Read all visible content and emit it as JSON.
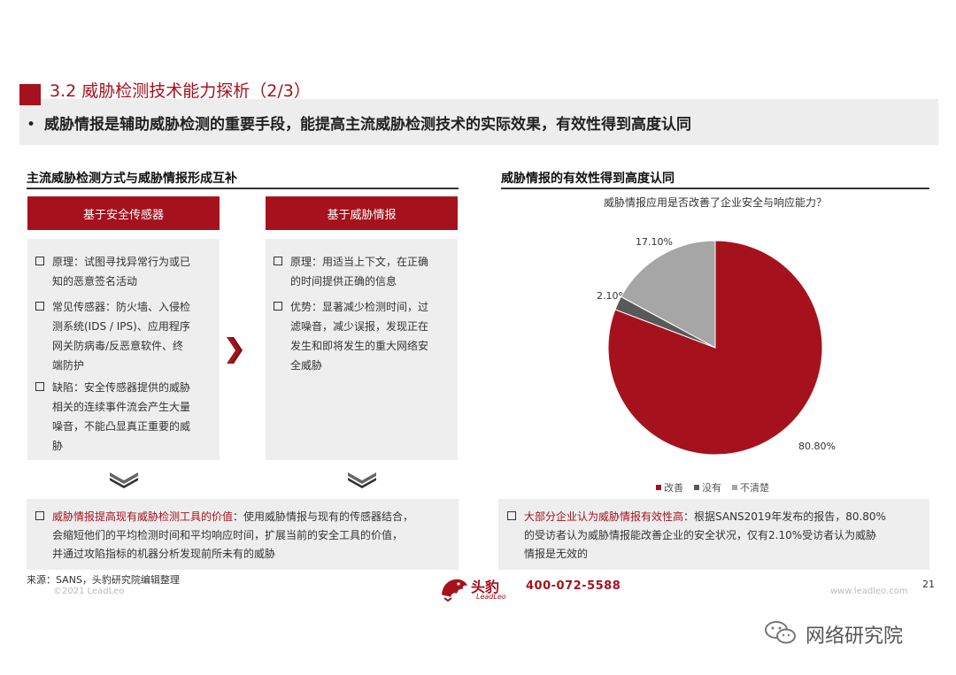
{
  "header": {
    "title": "3.2 威胁检测技术能力探析（2/3）",
    "summary_bullet": "•",
    "summary": "威胁情报是辅助威胁检测的重要手段，能提高主流威胁检测技术的实际效果，有效性得到高度认同"
  },
  "left_section": {
    "title": "主流威胁检测方式与威胁情报形成互补",
    "card1": {
      "header": "基于安全传感器",
      "items": [
        {
          "lines": [
            "原理：试图寻找异常行为或已",
            "知的恶意签名活动"
          ]
        },
        {
          "lines": [
            "常见传感器：防火墙、入侵检",
            "测系统(IDS / IPS)、应用程序",
            "网关防病毒/反恶意软件、终",
            "端防护"
          ]
        },
        {
          "lines": [
            "缺陷：安全传感器提供的威胁",
            "相关的连续事件流会产生大量",
            "噪音，不能凸显真正重要的威",
            "胁"
          ]
        }
      ]
    },
    "card2": {
      "header": "基于威胁情报",
      "items": [
        {
          "lines": [
            "原理：用适当上下文，在正确",
            "的时间提供正确的信息"
          ]
        },
        {
          "lines": [
            "优势：显著减少检测时间，过",
            "滤噪音，减少误报，发现正在",
            "发生和即将发生的重大网络安",
            "全威胁"
          ]
        }
      ]
    },
    "bottom": {
      "highlight": "威胁情报提高现有威胁检测工具的价值",
      "rest1": "：使用威胁情报与现有的传感器结合，",
      "line2": "会缩短他们的平均检测时间和平均响应时间，扩展当前的安全工具的价值，",
      "line3": "并通过攻陷指标的机器分析发现前所未有的威胁"
    }
  },
  "right_section": {
    "title": "威胁情报的有效性得到高度认同",
    "bottom": {
      "highlight": "大部分企业认为威胁情报有效性高",
      "rest1": "：根据SANS2019年发布的报告，80.80%",
      "line2": "的受访者认为威胁情报能改善企业的安全状况，仅有2.10%受访者认为威胁",
      "line3": "情报是无效的"
    }
  },
  "chart_data": {
    "type": "pie",
    "title": "威胁情报应用是否改善了企业安全与响应能力？",
    "slices": [
      {
        "name": "改善",
        "value": 80.8,
        "label": "80.80%",
        "color": "#a5121d"
      },
      {
        "name": "没有",
        "value": 2.1,
        "label": "2.10%",
        "color": "#595959"
      },
      {
        "name": "不清楚",
        "value": 17.1,
        "label": "17.10%",
        "color": "#a6a6a6"
      }
    ],
    "legend_position": "bottom"
  },
  "footer": {
    "source": "来源：SANS，头豹研究院编辑整理",
    "copyright": "©2021 LeadLeo",
    "logo_text": "头豹",
    "logo_sub": "LeadLeo",
    "phone": "400-072-5588",
    "website": "www.leadleo.com",
    "page_number": "21"
  },
  "watermark": {
    "text": "网络研究院"
  }
}
